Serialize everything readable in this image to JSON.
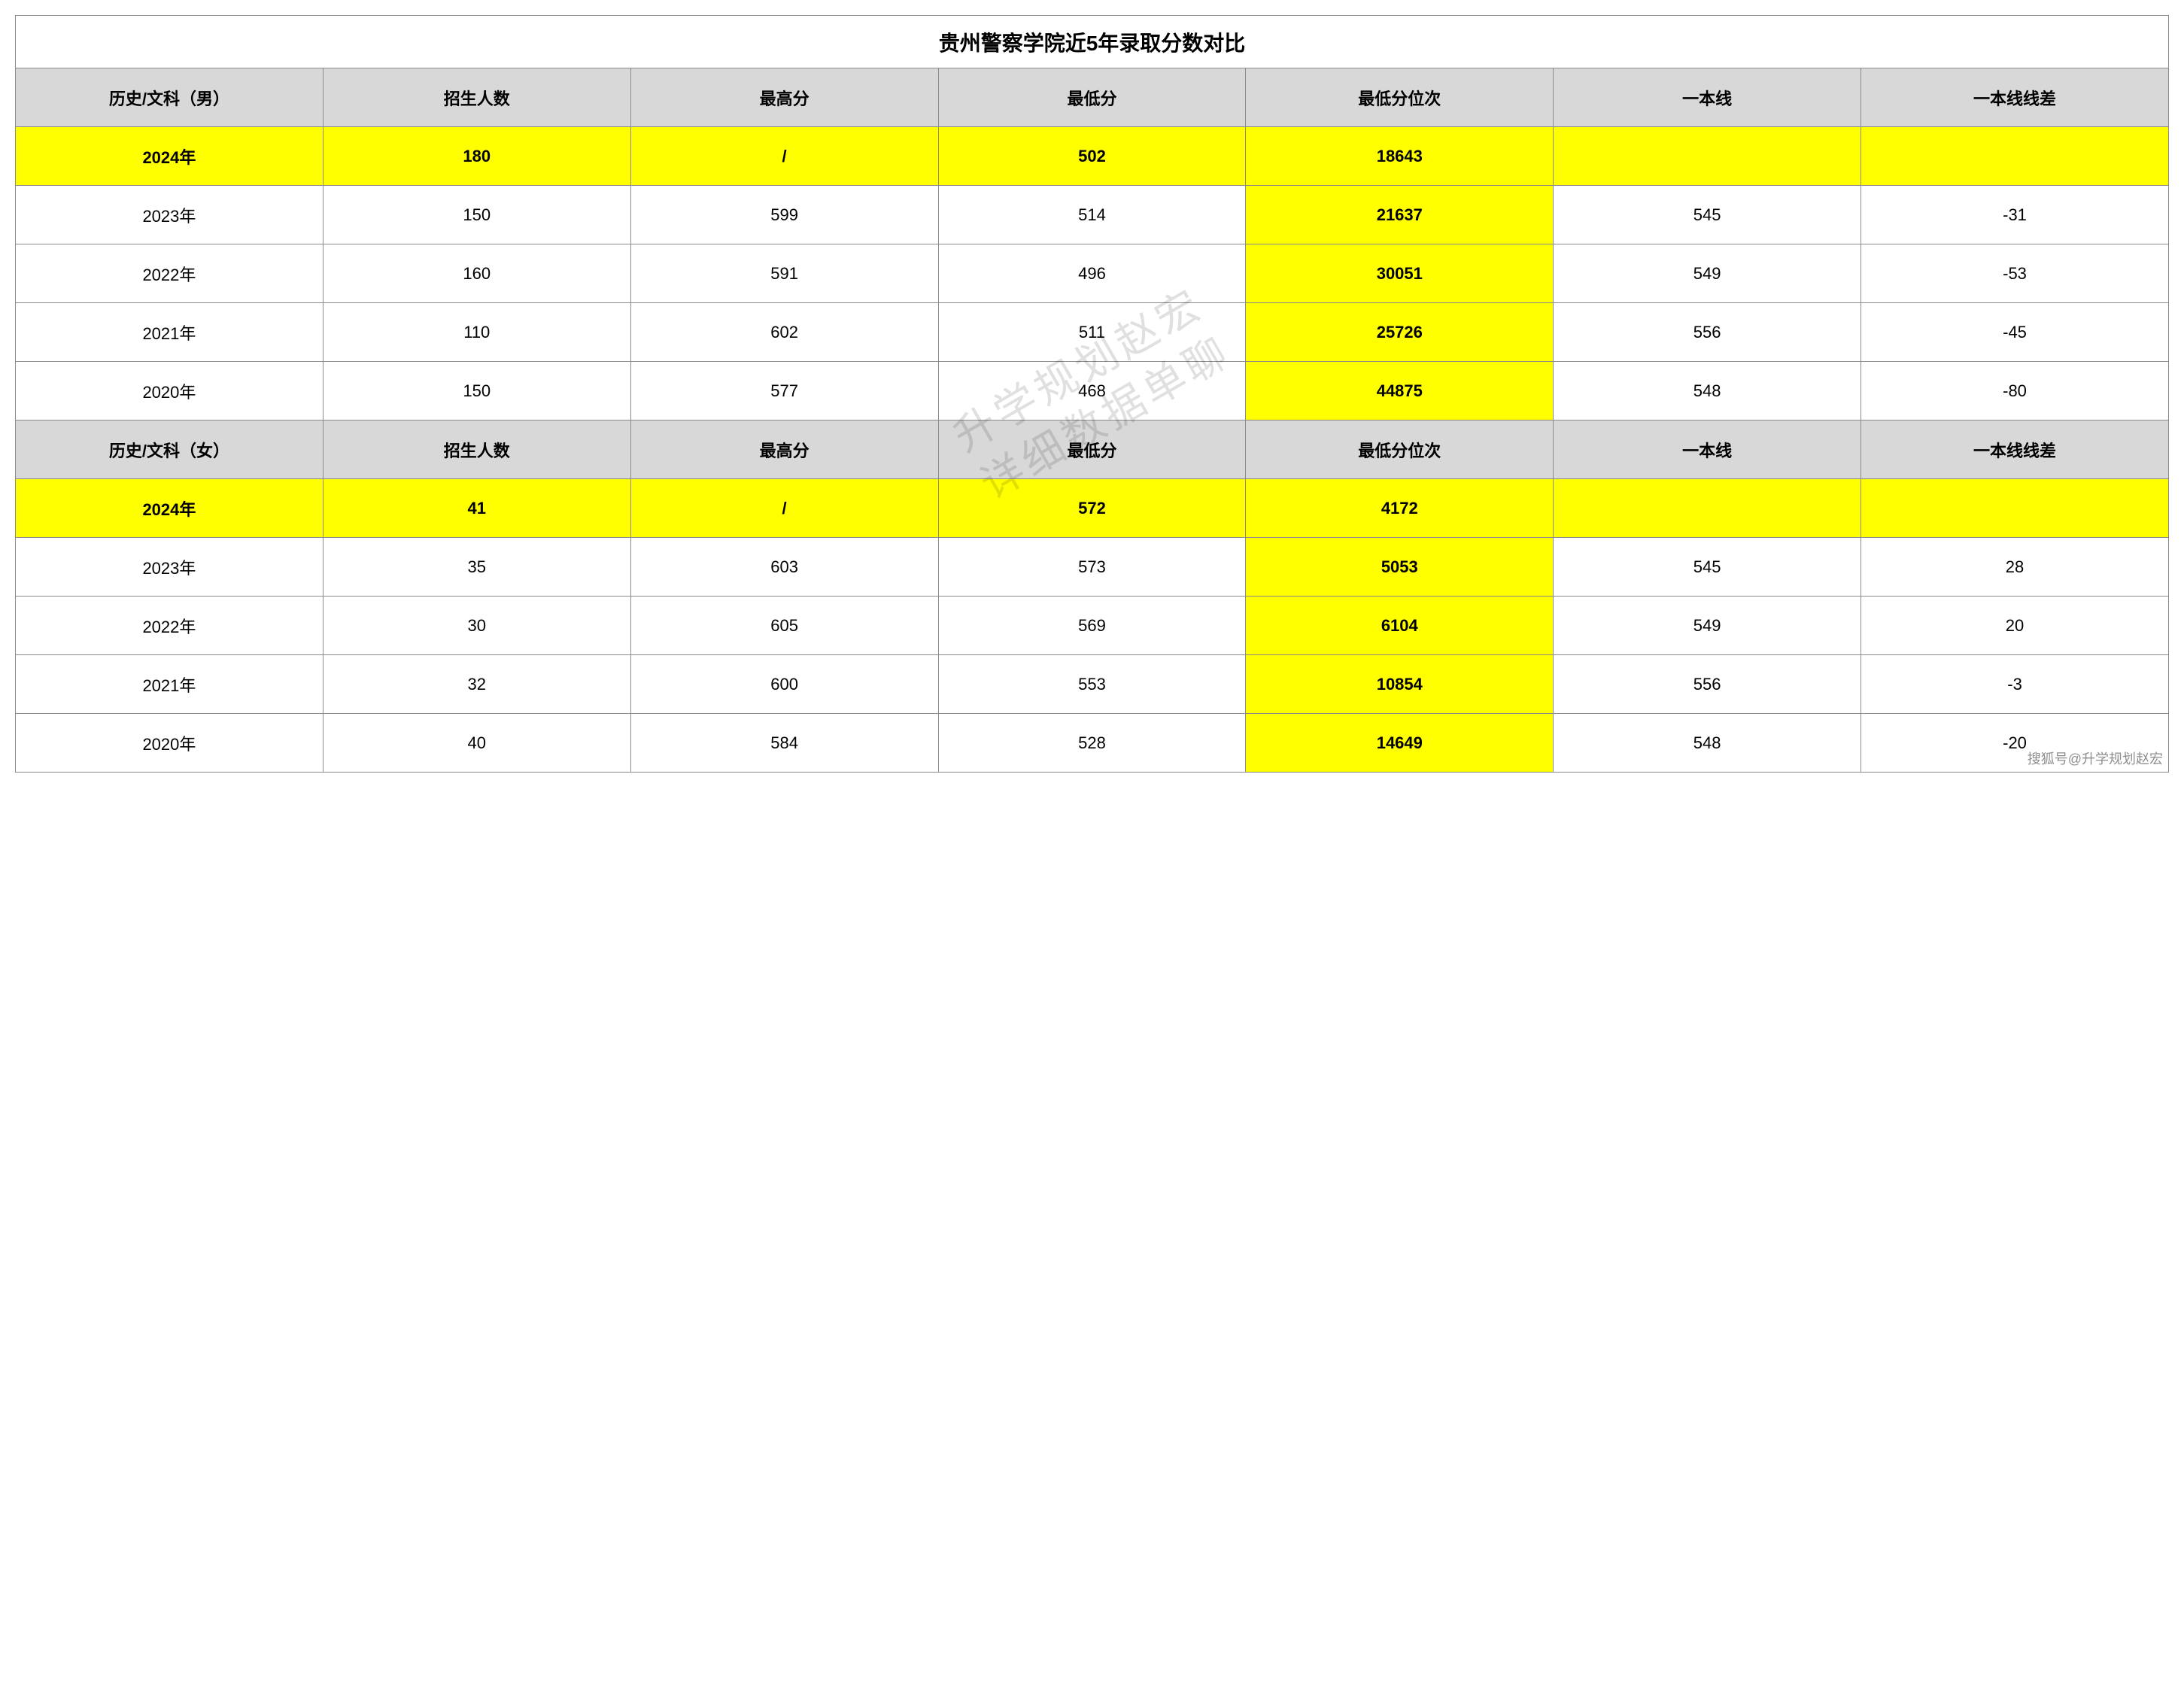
{
  "title": "贵州警察学院近5年录取分数对比",
  "watermark_line1": "升学规划赵宏",
  "watermark_line2": "详细数据单聊",
  "attribution": "搜狐号@升学规划赵宏",
  "colors": {
    "header_bg": "#d8d8d8",
    "highlight_bg": "#ffff00",
    "border": "#8a8a8a",
    "text": "#000000",
    "background": "#ffffff"
  },
  "sections": [
    {
      "header": {
        "c0": "历史/文科（男）",
        "c1": "招生人数",
        "c2": "最高分",
        "c3": "最低分",
        "c4": "最低分位次",
        "c5": "一本线",
        "c6": "一本线线差"
      },
      "rows": [
        {
          "hl": true,
          "c0": "2024年",
          "c1": "180",
          "c2": "/",
          "c3": "502",
          "c4": "18643",
          "c5": "",
          "c6": ""
        },
        {
          "hl": false,
          "c0": "2023年",
          "c1": "150",
          "c2": "599",
          "c3": "514",
          "c4": "21637",
          "c5": "545",
          "c6": "-31"
        },
        {
          "hl": false,
          "c0": "2022年",
          "c1": "160",
          "c2": "591",
          "c3": "496",
          "c4": "30051",
          "c5": "549",
          "c6": "-53"
        },
        {
          "hl": false,
          "c0": "2021年",
          "c1": "110",
          "c2": "602",
          "c3": "511",
          "c4": "25726",
          "c5": "556",
          "c6": "-45"
        },
        {
          "hl": false,
          "c0": "2020年",
          "c1": "150",
          "c2": "577",
          "c3": "468",
          "c4": "44875",
          "c5": "548",
          "c6": "-80"
        }
      ]
    },
    {
      "header": {
        "c0": "历史/文科（女）",
        "c1": "招生人数",
        "c2": "最高分",
        "c3": "最低分",
        "c4": "最低分位次",
        "c5": "一本线",
        "c6": "一本线线差"
      },
      "rows": [
        {
          "hl": true,
          "c0": "2024年",
          "c1": "41",
          "c2": "/",
          "c3": "572",
          "c4": "4172",
          "c5": "",
          "c6": ""
        },
        {
          "hl": false,
          "c0": "2023年",
          "c1": "35",
          "c2": "603",
          "c3": "573",
          "c4": "5053",
          "c5": "545",
          "c6": "28"
        },
        {
          "hl": false,
          "c0": "2022年",
          "c1": "30",
          "c2": "605",
          "c3": "569",
          "c4": "6104",
          "c5": "549",
          "c6": "20"
        },
        {
          "hl": false,
          "c0": "2021年",
          "c1": "32",
          "c2": "600",
          "c3": "553",
          "c4": "10854",
          "c5": "556",
          "c6": "-3"
        },
        {
          "hl": false,
          "c0": "2020年",
          "c1": "40",
          "c2": "584",
          "c3": "528",
          "c4": "14649",
          "c5": "548",
          "c6": "-20"
        }
      ]
    }
  ]
}
